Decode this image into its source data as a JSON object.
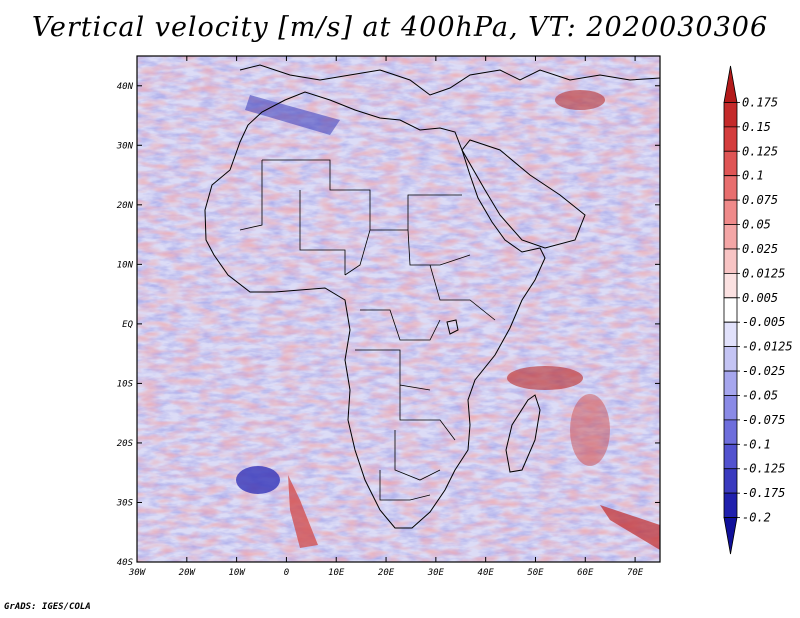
{
  "title": "Vertical velocity [m/s] at 400hPa, VT: 2020030306",
  "credit": "GrADS: IGES/COLA",
  "map": {
    "projection": "lat-lon",
    "region": "Africa",
    "lon_range": [
      -30,
      75
    ],
    "lat_range": [
      -40,
      45
    ],
    "x_ticks": [
      "30W",
      "20W",
      "10W",
      "0",
      "10E",
      "20E",
      "30E",
      "40E",
      "50E",
      "60E",
      "70E"
    ],
    "y_ticks": [
      "40N",
      "30N",
      "20N",
      "10N",
      "EQ",
      "10S",
      "20S",
      "30S",
      "40S"
    ],
    "field": "Vertical velocity",
    "units": "m/s",
    "level": "400hPa",
    "valid_time": "2020030306"
  },
  "colorbar": {
    "labels": [
      "0.175",
      "0.15",
      "0.125",
      "0.1",
      "0.075",
      "0.05",
      "0.025",
      "0.0125",
      "0.005",
      "-0.005",
      "-0.0125",
      "-0.025",
      "-0.05",
      "-0.075",
      "-0.1",
      "-0.125",
      "-0.175",
      "-0.2"
    ],
    "colors": [
      "#b31a1a",
      "#c42a2a",
      "#d43d3d",
      "#df5555",
      "#e86e6e",
      "#ef8a8a",
      "#f4a6a6",
      "#f8c4c4",
      "#fbe1e1",
      "#ffffff",
      "#e1e1fb",
      "#c4c4f4",
      "#a6a6ee",
      "#8a8ae6",
      "#6e6edc",
      "#5252cf",
      "#3a3abf",
      "#2020ad",
      "#10109a"
    ]
  },
  "colors": {
    "red": "#e04848",
    "blue": "#4a4ad0",
    "pale_red": "#f6c8c8",
    "pale_blue": "#cfd0f4"
  }
}
